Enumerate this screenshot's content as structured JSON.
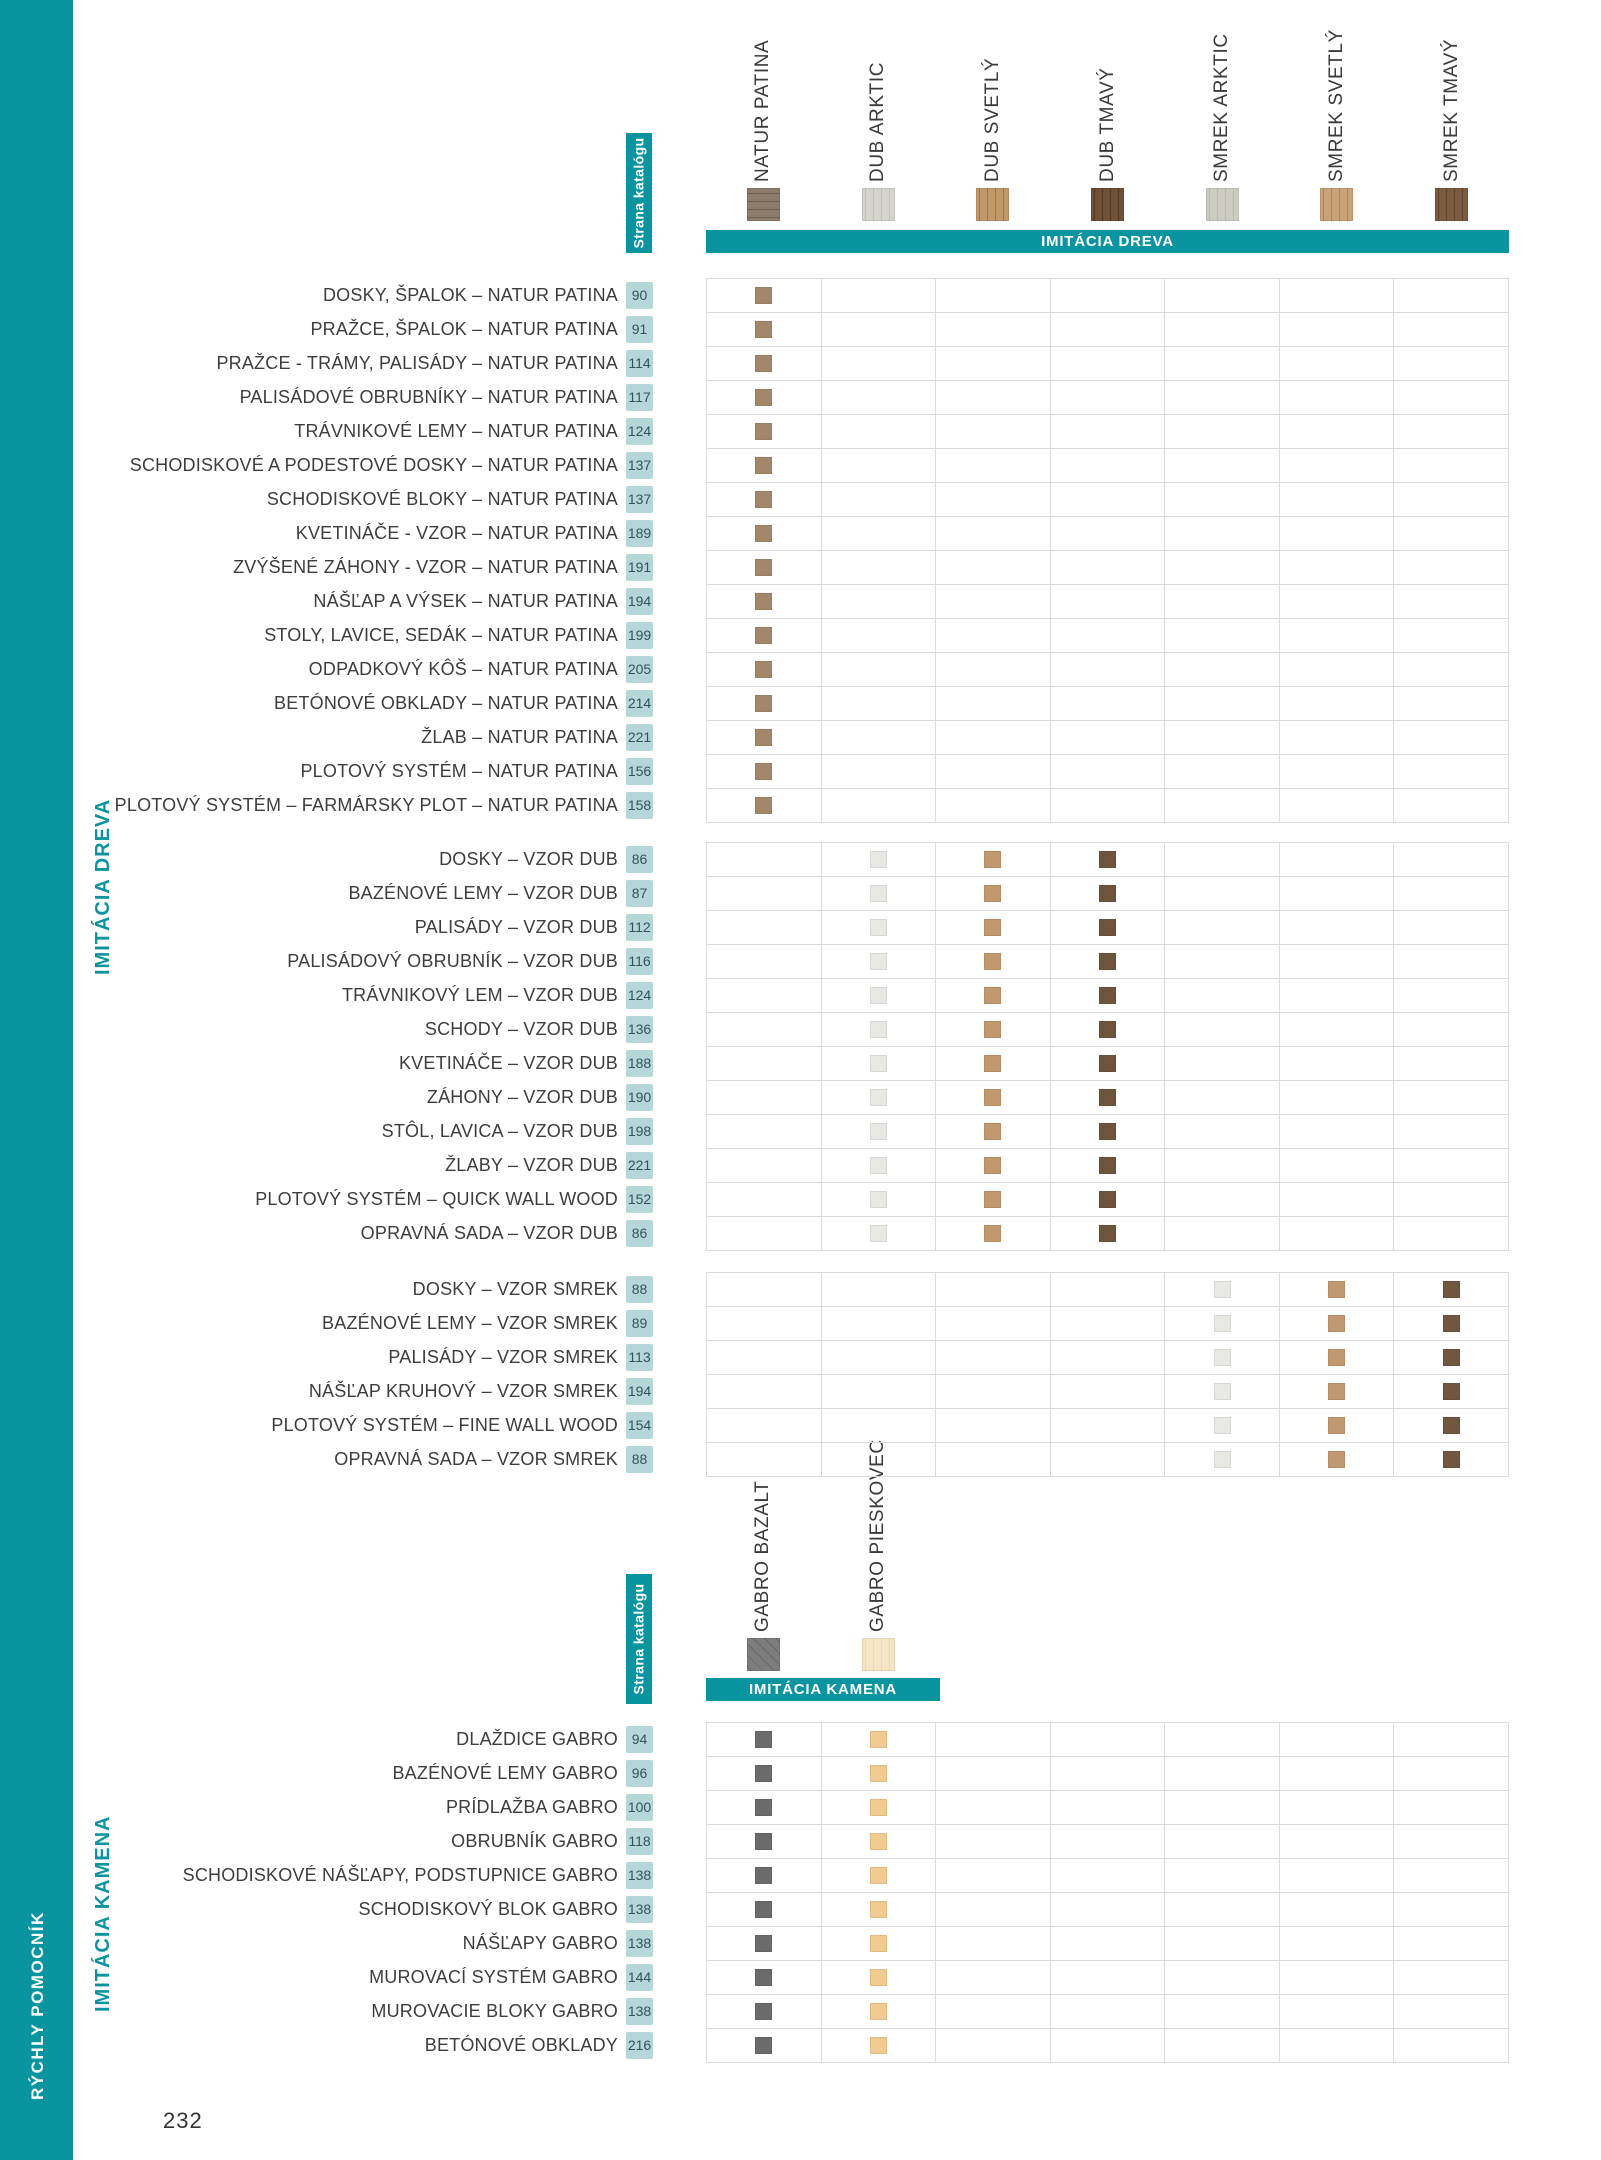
{
  "page": {
    "number": "232"
  },
  "sidebar": {
    "rail_label": "RÝCHLY POMOCNÍK",
    "category_wood": "IMITÁCIA DREVA",
    "category_stone": "IMITÁCIA KAMENA"
  },
  "catalog_badge_label": "Strana katalógu",
  "colors": {
    "teal": "#0995A0",
    "badge_bg": "#B5D7D9",
    "badge_text": "#2F555C",
    "grid_border": "#DBDBDB",
    "label_text": "#3D3D3D"
  },
  "wood": {
    "band_label": "IMITÁCIA DREVA",
    "columns": [
      {
        "label": "NATUR PATINA",
        "base": "#8D7C6C",
        "streak": "#6F5F50",
        "angle": "0deg"
      },
      {
        "label": "DUB ARKTIC",
        "base": "#D6D5CD",
        "streak": "#C2C1B8",
        "angle": "90deg"
      },
      {
        "label": "DUB SVETLÝ",
        "base": "#C39868",
        "streak": "#A5764A",
        "angle": "90deg"
      },
      {
        "label": "DUB TMAVÝ",
        "base": "#6F5137",
        "streak": "#55381F",
        "angle": "90deg"
      },
      {
        "label": "SMREK ARKTIC",
        "base": "#CCCCC3",
        "streak": "#B9B9AE",
        "angle": "90deg"
      },
      {
        "label": "SMREK SVETLÝ",
        "base": "#C9A377",
        "streak": "#B28455",
        "angle": "90deg"
      },
      {
        "label": "SMREK TMAVÝ",
        "base": "#7C5C40",
        "streak": "#624426",
        "angle": "90deg"
      }
    ],
    "sections": [
      {
        "cells": [
          {
            "col": 0,
            "color": "#A3876A"
          }
        ],
        "rows": [
          {
            "label": "DOSKY, ŠPALOK – NATUR PATINA",
            "page": "90"
          },
          {
            "label": "PRAŽCE, ŠPALOK – NATUR PATINA",
            "page": "91"
          },
          {
            "label": "PRAŽCE - TRÁMY, PALISÁDY – NATUR PATINA",
            "page": "114"
          },
          {
            "label": "PALISÁDOVÉ OBRUBNÍKY – NATUR PATINA",
            "page": "117"
          },
          {
            "label": "TRÁVNIKOVÉ LEMY – NATUR PATINA",
            "page": "124"
          },
          {
            "label": "SCHODISKOVÉ A PODESTOVÉ DOSKY – NATUR PATINA",
            "page": "137"
          },
          {
            "label": "SCHODISKOVÉ BLOKY – NATUR PATINA",
            "page": "137"
          },
          {
            "label": "KVETINÁČE - VZOR – NATUR PATINA",
            "page": "189"
          },
          {
            "label": "ZVÝŠENÉ ZÁHONY - VZOR – NATUR PATINA",
            "page": "191"
          },
          {
            "label": "NÁŠĽAP A VÝSEK – NATUR PATINA",
            "page": "194"
          },
          {
            "label": "STOLY, LAVICE, SEDÁK – NATUR PATINA",
            "page": "199"
          },
          {
            "label": "ODPADKOVÝ KÔŠ – NATUR PATINA",
            "page": "205"
          },
          {
            "label": "BETÓNOVÉ OBKLADY – NATUR PATINA",
            "page": "214"
          },
          {
            "label": "ŽLAB – NATUR PATINA",
            "page": "221"
          },
          {
            "label": "PLOTOVÝ SYSTÉM – NATUR PATINA",
            "page": "156"
          },
          {
            "label": "PLOTOVÝ SYSTÉM – FARMÁRSKY PLOT – NATUR PATINA",
            "page": "158"
          }
        ]
      },
      {
        "cells": [
          {
            "col": 1,
            "color": "#E8E8E5"
          },
          {
            "col": 2,
            "color": "#C2986F"
          },
          {
            "col": 3,
            "color": "#6D553D"
          }
        ],
        "rows": [
          {
            "label": "DOSKY – VZOR DUB",
            "page": "86"
          },
          {
            "label": "BAZÉNOVÉ LEMY – VZOR DUB",
            "page": "87"
          },
          {
            "label": "PALISÁDY – VZOR DUB",
            "page": "112"
          },
          {
            "label": "PALISÁDOVÝ OBRUBNÍK – VZOR DUB",
            "page": "116"
          },
          {
            "label": "TRÁVNIKOVÝ LEM – VZOR DUB",
            "page": "124"
          },
          {
            "label": "SCHODY – VZOR DUB",
            "page": "136"
          },
          {
            "label": "KVETINÁČE – VZOR DUB",
            "page": "188"
          },
          {
            "label": "ZÁHONY – VZOR DUB",
            "page": "190"
          },
          {
            "label": "STÔL, LAVICA – VZOR DUB",
            "page": "198"
          },
          {
            "label": "ŽLABY – VZOR DUB",
            "page": "221"
          },
          {
            "label": "PLOTOVÝ SYSTÉM – QUICK WALL WOOD",
            "page": "152"
          },
          {
            "label": "OPRAVNÁ SADA – VZOR DUB",
            "page": "86"
          }
        ]
      },
      {
        "cells": [
          {
            "col": 4,
            "color": "#E8E8E5"
          },
          {
            "col": 5,
            "color": "#C2986F"
          },
          {
            "col": 6,
            "color": "#6F5740"
          }
        ],
        "rows": [
          {
            "label": "DOSKY – VZOR SMREK",
            "page": "88"
          },
          {
            "label": "BAZÉNOVÉ LEMY – VZOR SMREK",
            "page": "89"
          },
          {
            "label": "PALISÁDY – VZOR SMREK",
            "page": "113"
          },
          {
            "label": "NÁŠĽAP KRUHOVÝ – VZOR SMREK",
            "page": "194"
          },
          {
            "label": "PLOTOVÝ SYSTÉM – FINE WALL WOOD",
            "page": "154"
          },
          {
            "label": "OPRAVNÁ SADA – VZOR SMREK",
            "page": "88"
          }
        ]
      }
    ]
  },
  "stone": {
    "band_label": "IMITÁCIA KAMENA",
    "columns": [
      {
        "label": "GABRO BAZALT",
        "base": "#7D7D7D",
        "streak": "#696969",
        "angle": "45deg"
      },
      {
        "label": "GABRO PIESKOVEC",
        "base": "#F7E6C6",
        "streak": "#F0D9AE",
        "angle": "90deg"
      }
    ],
    "section": {
      "cells": [
        {
          "col": 0,
          "color": "#6B6B6B"
        },
        {
          "col": 1,
          "color": "#F2CB90"
        }
      ],
      "rows": [
        {
          "label": "DLAŽDICE GABRO",
          "page": "94"
        },
        {
          "label": "BAZÉNOVÉ LEMY GABRO",
          "page": "96"
        },
        {
          "label": "PRÍDLAŽBA GABRO",
          "page": "100"
        },
        {
          "label": "OBRUBNÍK GABRO",
          "page": "118"
        },
        {
          "label": "SCHODISKOVÉ NÁŠĽAPY, PODSTUPNICE GABRO",
          "page": "138"
        },
        {
          "label": "SCHODISKOVÝ BLOK GABRO",
          "page": "138"
        },
        {
          "label": "NÁŠĽAPY GABRO",
          "page": "138"
        },
        {
          "label": "MUROVACÍ SYSTÉM GABRO",
          "page": "144"
        },
        {
          "label": "MUROVACIE BLOKY GABRO",
          "page": "138"
        },
        {
          "label": "BETÓNOVÉ OBKLADY",
          "page": "216"
        }
      ]
    }
  }
}
